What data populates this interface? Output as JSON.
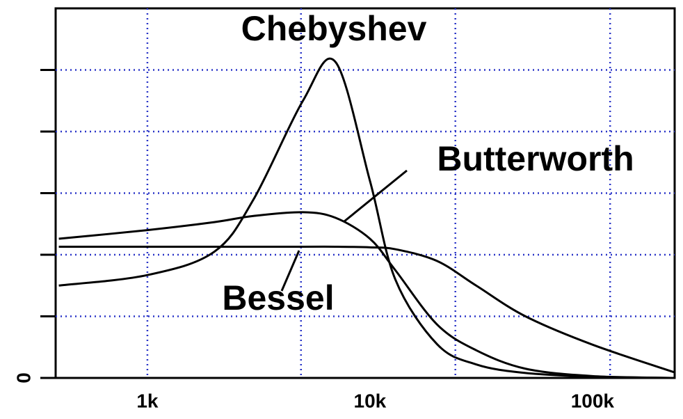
{
  "chart_data": {
    "type": "line",
    "x": [
      400,
      1000,
      2000,
      3000,
      5000,
      7000,
      10000,
      13000,
      20000,
      30000,
      50000,
      100000,
      234000
    ],
    "series": [
      {
        "name": "Chebyshev",
        "color": "#000000",
        "values": [
          1.5,
          1.67,
          2.05,
          2.9,
          4.5,
          5.13,
          3.2,
          1.6,
          0.55,
          0.22,
          0.08,
          0.02,
          0.0
        ]
      },
      {
        "name": "Butterworth",
        "color": "#000000",
        "values": [
          2.26,
          2.4,
          2.53,
          2.63,
          2.69,
          2.6,
          2.26,
          1.75,
          0.87,
          0.45,
          0.15,
          0.03,
          0.0
        ]
      },
      {
        "name": "Bessel",
        "color": "#000000",
        "values": [
          2.13,
          2.13,
          2.13,
          2.13,
          2.13,
          2.13,
          2.12,
          2.09,
          1.9,
          1.5,
          1.0,
          0.54,
          0.09
        ]
      }
    ],
    "xlim": [
      387,
      234000
    ],
    "log_x": true,
    "xticks": [
      {
        "value": 1000,
        "label": "1k"
      },
      {
        "value": 10000,
        "label": "10k"
      },
      {
        "value": 100000,
        "label": "100k"
      }
    ],
    "xgrid": [
      1000,
      4900,
      24200,
      120000
    ],
    "ylim": [
      0,
      6
    ],
    "yticks": [
      0
    ],
    "ygrid": [
      1,
      2,
      3,
      4,
      5
    ],
    "grid_color": "#2a35c8"
  }
}
